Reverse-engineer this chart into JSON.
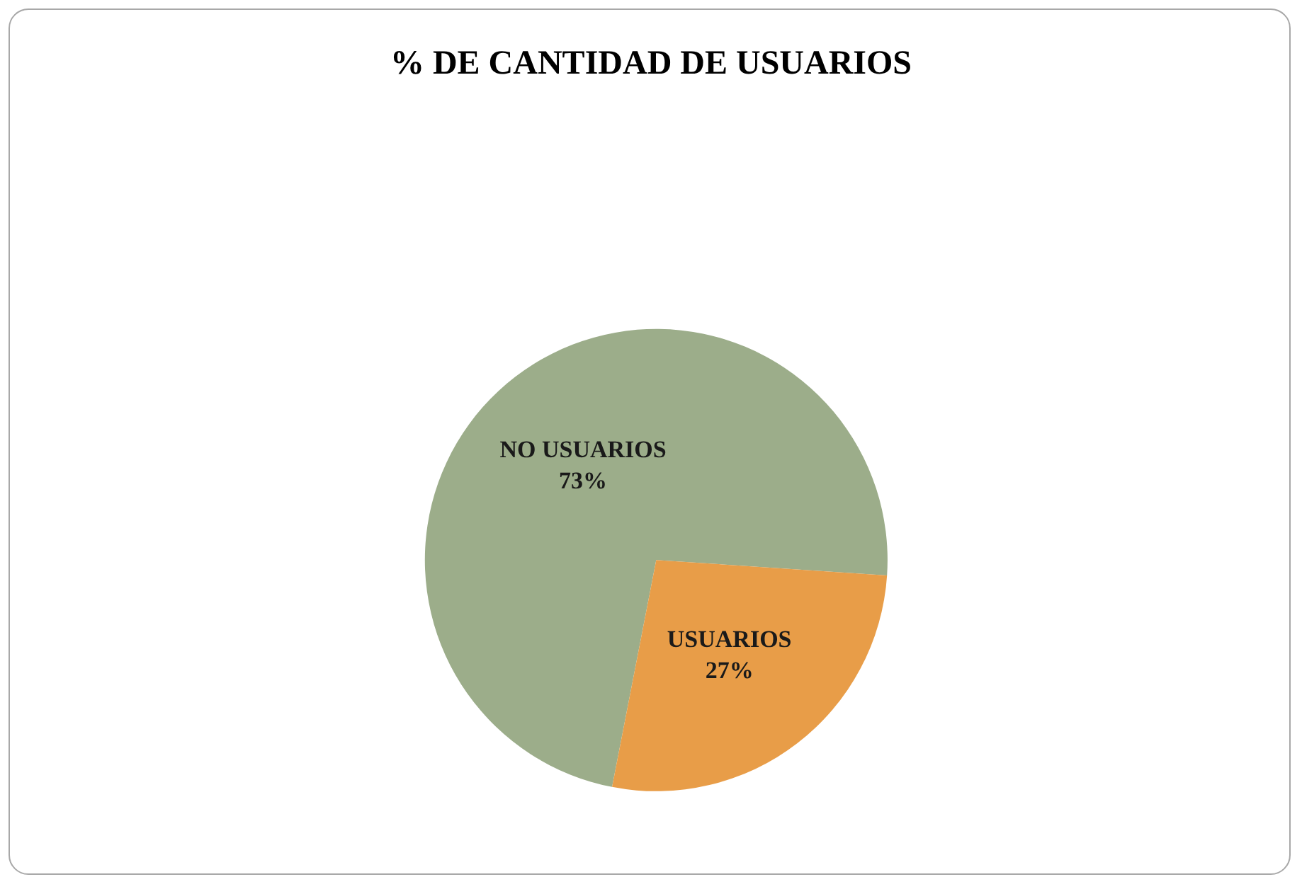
{
  "chart_data": {
    "type": "pie",
    "title": "% DE CANTIDAD DE USUARIOS",
    "categories": [
      "NO USUARIOS",
      "USUARIOS"
    ],
    "values": [
      73,
      27
    ],
    "colors": [
      "#9cad8a",
      "#e89d48"
    ],
    "value_labels": [
      "73%",
      "27%"
    ],
    "legend": false
  }
}
